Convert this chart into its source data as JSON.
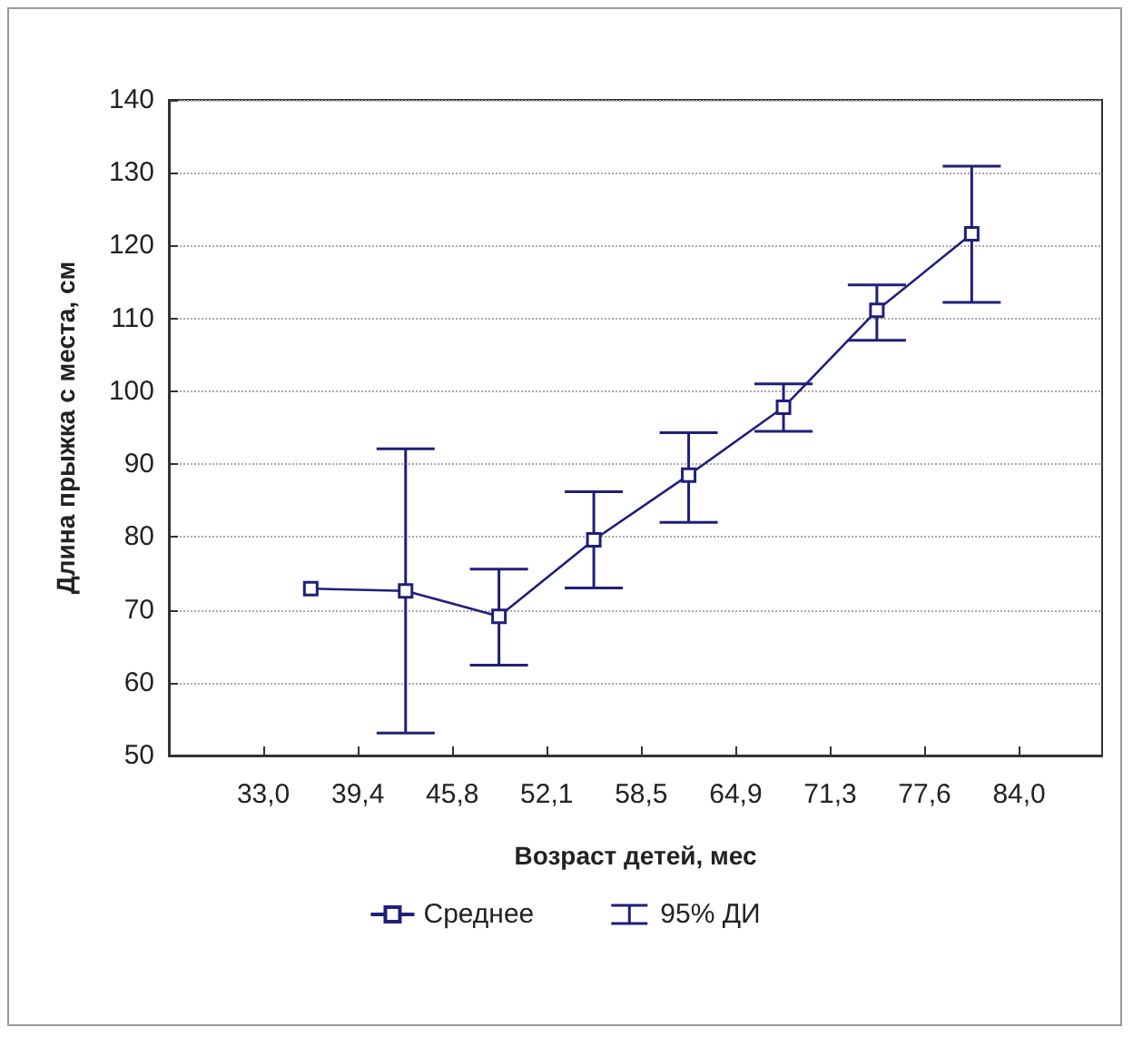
{
  "chart_data": {
    "type": "line",
    "xlabel": "Возраст детей, мес",
    "ylabel": "Длина прыжка с места, см",
    "x": [
      36.2,
      42.6,
      48.9,
      55.3,
      61.7,
      68.1,
      74.4,
      80.8
    ],
    "xlim": [
      26.625,
      89.6
    ],
    "xticks": [
      {
        "value": 33,
        "label": "33,0"
      },
      {
        "value": 39.375,
        "label": "39,4"
      },
      {
        "value": 45.75,
        "label": "45,8"
      },
      {
        "value": 52.125,
        "label": "52,1"
      },
      {
        "value": 58.5,
        "label": "58,5"
      },
      {
        "value": 64.875,
        "label": "64,9"
      },
      {
        "value": 71.25,
        "label": "71,3"
      },
      {
        "value": 77.625,
        "label": "77,6"
      },
      {
        "value": 84,
        "label": "84,0"
      }
    ],
    "ylim": [
      50,
      140
    ],
    "yticks": [
      50,
      60,
      70,
      80,
      90,
      100,
      110,
      120,
      130,
      140
    ],
    "grid": "y",
    "legend": "bottom",
    "marker": "square",
    "line_style": "solid",
    "series": [
      {
        "name": "Среднее",
        "color": "#1f1f7a",
        "values": [
          72.9,
          72.6,
          69.1,
          79.6,
          88.5,
          97.8,
          111.1,
          121.6
        ],
        "errors": [
          null,
          [
            53.1,
            92.1
          ],
          [
            62.4,
            75.6
          ],
          [
            73.0,
            86.2
          ],
          [
            82.0,
            94.3
          ],
          [
            94.5,
            101.0
          ],
          [
            107.0,
            114.6
          ],
          [
            112.2,
            130.9
          ]
        ]
      }
    ],
    "annotations": [
      "95% ДИ"
    ]
  }
}
